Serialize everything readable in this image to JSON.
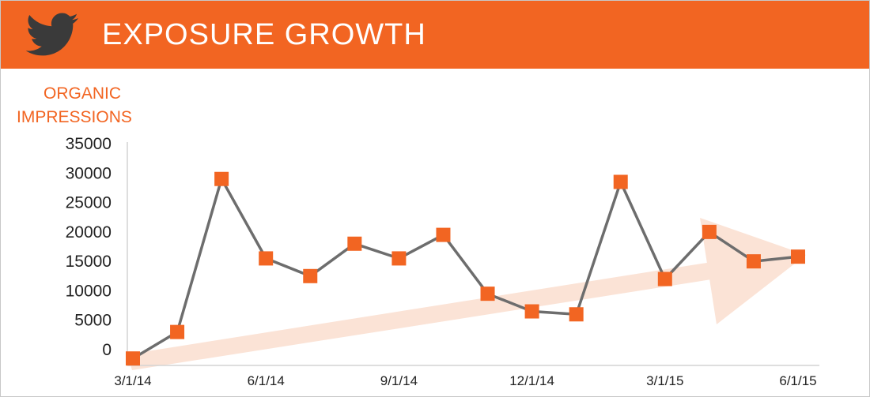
{
  "header": {
    "title": "EXPOSURE GROWTH",
    "icon": "twitter-bird-icon",
    "color": "#f26522"
  },
  "chart_data": {
    "type": "line",
    "ylabel_lines": [
      "ORGANIC",
      "IMPRESSIONS"
    ],
    "xlabel": "",
    "x_tick_labels": [
      "3/1/14",
      "6/1/14",
      "9/1/14",
      "12/1/14",
      "3/1/15",
      "6/1/15"
    ],
    "y_tick_labels": [
      "0",
      "5000",
      "10000",
      "15000",
      "20000",
      "25000",
      "30000",
      "35000"
    ],
    "ylim": [
      0,
      35000
    ],
    "grid": false,
    "legend": "none",
    "series": [
      {
        "x": [
          "3/1/14",
          "4/1/14",
          "5/1/14",
          "6/1/14",
          "7/1/14",
          "8/1/14",
          "9/1/14",
          "10/1/14",
          "11/1/14",
          "12/1/14",
          "1/1/15",
          "2/1/15",
          "3/1/15",
          "4/1/15",
          "5/1/15",
          "6/1/15"
        ],
        "values": [
          -1500,
          3000,
          29000,
          15500,
          12500,
          18000,
          15500,
          19500,
          9500,
          6500,
          6000,
          28500,
          12000,
          20000,
          15000,
          15800
        ],
        "color": "#f26522",
        "line_color": "#6d6d6d",
        "marker": "square"
      }
    ],
    "annotations": [
      {
        "type": "trend-arrow",
        "color": "#fbe3d6",
        "direction": "up-right"
      }
    ]
  }
}
